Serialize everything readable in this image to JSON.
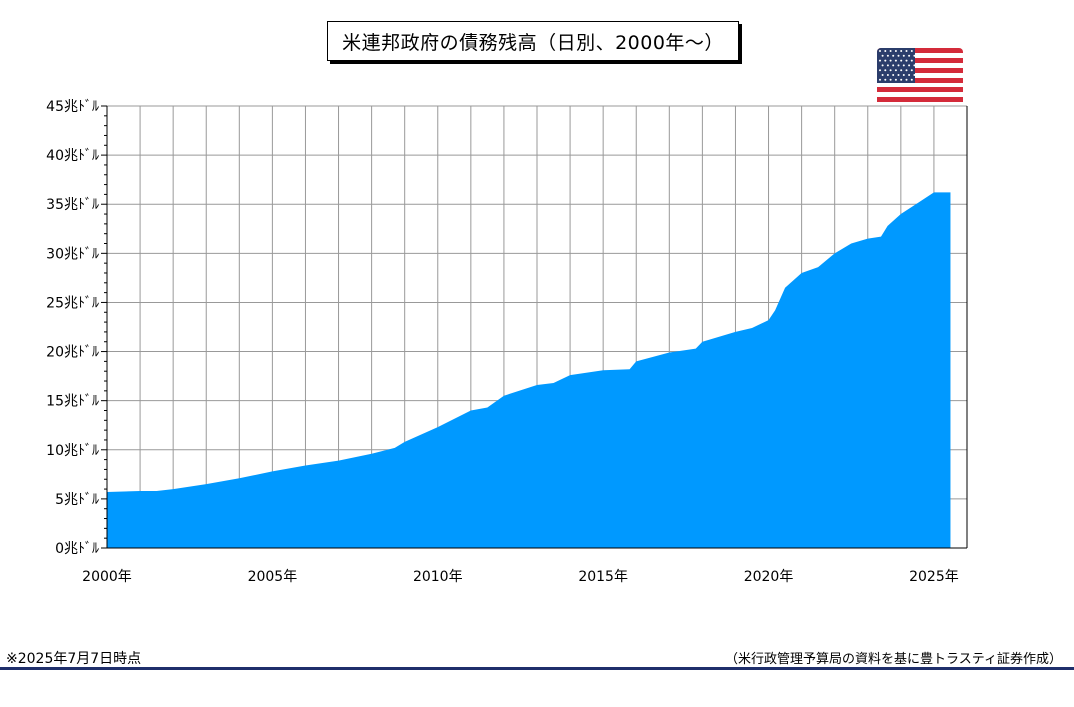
{
  "title": "米連邦政府の債務残高（日別、2000年～）",
  "footnote": "※2025年7月7日時点",
  "source": "（米行政管理予算局の資料を基に豊トラスティ証券作成）",
  "flag_icon": "us-flag-icon",
  "colors": {
    "area": "#0099ff",
    "grid": "#999999",
    "rule": "#1f2f6b"
  },
  "chart_data": {
    "type": "area",
    "title": "米連邦政府の債務残高（日別、2000年～）",
    "xlabel": "",
    "ylabel": "",
    "xlim": [
      2000,
      2026
    ],
    "ylim": [
      0,
      45
    ],
    "grid": true,
    "x_ticks": [
      2000,
      2005,
      2010,
      2015,
      2020,
      2025
    ],
    "x_tick_labels": [
      "2000年",
      "2005年",
      "2010年",
      "2015年",
      "2020年",
      "2025年"
    ],
    "y_ticks": [
      0,
      5,
      10,
      15,
      20,
      25,
      30,
      35,
      40,
      45
    ],
    "y_tick_labels": [
      "0兆ﾄﾞﾙ",
      "5兆ﾄﾞﾙ",
      "10兆ﾄﾞﾙ",
      "15兆ﾄﾞﾙ",
      "20兆ﾄﾞﾙ",
      "25兆ﾄﾞﾙ",
      "30兆ﾄﾞﾙ",
      "35兆ﾄﾞﾙ",
      "40兆ﾄﾞﾙ",
      "45兆ﾄﾞﾙ"
    ],
    "series": [
      {
        "values_unit": "兆ﾄﾞﾙ",
        "x": [
          2000.0,
          2001.0,
          2001.5,
          2002.0,
          2003.0,
          2004.0,
          2005.0,
          2006.0,
          2007.0,
          2008.0,
          2008.7,
          2008.9,
          2009.0,
          2010.0,
          2011.0,
          2011.5,
          2012.0,
          2013.0,
          2013.5,
          2014.0,
          2015.0,
          2015.8,
          2016.0,
          2017.0,
          2017.8,
          2018.0,
          2019.0,
          2019.5,
          2020.0,
          2020.2,
          2020.5,
          2021.0,
          2021.5,
          2022.0,
          2022.5,
          2023.0,
          2023.4,
          2023.6,
          2024.0,
          2024.5,
          2025.0,
          2025.5
        ],
        "values": [
          5.7,
          5.8,
          5.8,
          6.0,
          6.5,
          7.1,
          7.8,
          8.4,
          8.9,
          9.6,
          10.2,
          10.6,
          10.8,
          12.3,
          14.0,
          14.3,
          15.5,
          16.6,
          16.8,
          17.6,
          18.1,
          18.2,
          19.0,
          19.9,
          20.3,
          21.0,
          22.0,
          22.4,
          23.2,
          24.2,
          26.5,
          28.0,
          28.6,
          30.0,
          31.0,
          31.5,
          31.7,
          32.8,
          34.0,
          35.1,
          36.2,
          36.2
        ]
      }
    ]
  }
}
